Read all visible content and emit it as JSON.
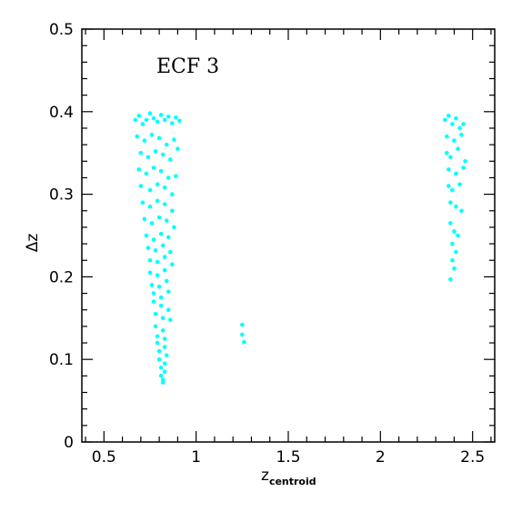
{
  "chart_data": {
    "type": "scatter",
    "title": "",
    "annotation": "ECF 3",
    "xlabel": "z",
    "xlabel_sub": "centroid",
    "ylabel": "Δz",
    "xlim": [
      0.38,
      2.62
    ],
    "ylim": [
      0,
      0.5
    ],
    "xticks": [
      0.5,
      1,
      1.5,
      2,
      2.5
    ],
    "xtick_labels": [
      "0.5",
      "1",
      "1.5",
      "2",
      "2.5"
    ],
    "yticks": [
      0,
      0.1,
      0.2,
      0.3,
      0.4,
      0.5
    ],
    "ytick_labels": [
      "0",
      "0.1",
      "0.2",
      "0.3",
      "0.4",
      "0.5"
    ],
    "grid": false,
    "marker_color": "#00ffff",
    "series": [
      {
        "x": [
          0.67,
          0.69,
          0.71,
          0.73,
          0.75,
          0.77,
          0.79,
          0.81,
          0.83,
          0.85,
          0.87,
          0.89,
          0.91,
          0.68,
          0.72,
          0.76,
          0.8,
          0.84,
          0.88,
          0.7,
          0.74,
          0.78,
          0.82,
          0.86,
          0.9,
          0.69,
          0.73,
          0.77,
          0.81,
          0.85,
          0.89,
          0.7,
          0.75,
          0.79,
          0.83,
          0.87,
          0.71,
          0.75,
          0.79,
          0.83,
          0.87,
          0.72,
          0.76,
          0.8,
          0.84,
          0.88,
          0.73,
          0.77,
          0.81,
          0.85,
          0.74,
          0.78,
          0.82,
          0.86,
          0.75,
          0.79,
          0.83,
          0.87,
          0.75,
          0.79,
          0.83,
          0.76,
          0.8,
          0.84,
          0.77,
          0.81,
          0.85,
          0.77,
          0.81,
          0.85,
          0.78,
          0.82,
          0.86,
          0.78,
          0.82,
          0.79,
          0.83,
          0.79,
          0.83,
          0.8,
          0.84,
          0.8,
          0.83,
          0.81,
          0.83,
          0.81,
          0.82,
          0.82,
          1.25,
          1.25,
          1.26,
          2.35,
          2.37,
          2.39,
          2.41,
          2.43,
          2.45,
          2.36,
          2.4,
          2.44,
          2.36,
          2.38,
          2.42,
          2.46,
          2.37,
          2.41,
          2.45,
          2.37,
          2.39,
          2.43,
          2.38,
          2.41,
          2.44,
          2.38,
          2.4,
          2.42,
          2.39,
          2.41,
          2.39,
          2.4,
          2.38
        ],
        "y": [
          0.39,
          0.395,
          0.385,
          0.39,
          0.398,
          0.392,
          0.388,
          0.396,
          0.39,
          0.394,
          0.386,
          0.393,
          0.389,
          0.37,
          0.365,
          0.372,
          0.368,
          0.36,
          0.366,
          0.35,
          0.345,
          0.352,
          0.348,
          0.342,
          0.355,
          0.33,
          0.325,
          0.332,
          0.328,
          0.32,
          0.322,
          0.31,
          0.305,
          0.312,
          0.308,
          0.3,
          0.29,
          0.285,
          0.292,
          0.288,
          0.28,
          0.27,
          0.265,
          0.272,
          0.268,
          0.26,
          0.25,
          0.245,
          0.252,
          0.248,
          0.235,
          0.232,
          0.238,
          0.23,
          0.22,
          0.218,
          0.224,
          0.215,
          0.205,
          0.202,
          0.208,
          0.19,
          0.188,
          0.195,
          0.18,
          0.175,
          0.182,
          0.17,
          0.165,
          0.16,
          0.155,
          0.15,
          0.148,
          0.14,
          0.135,
          0.128,
          0.125,
          0.12,
          0.115,
          0.11,
          0.105,
          0.1,
          0.095,
          0.09,
          0.085,
          0.08,
          0.075,
          0.072,
          0.142,
          0.13,
          0.121,
          0.39,
          0.395,
          0.385,
          0.392,
          0.38,
          0.385,
          0.37,
          0.365,
          0.372,
          0.35,
          0.345,
          0.355,
          0.34,
          0.33,
          0.325,
          0.332,
          0.31,
          0.305,
          0.312,
          0.29,
          0.285,
          0.28,
          0.265,
          0.255,
          0.25,
          0.24,
          0.23,
          0.22,
          0.21,
          0.197
        ]
      }
    ]
  }
}
